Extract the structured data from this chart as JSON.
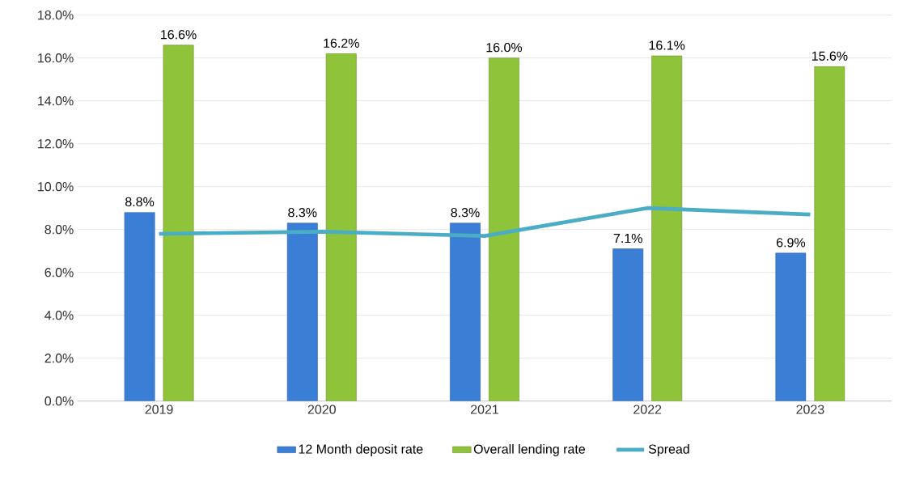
{
  "chart_data": {
    "type": "bar",
    "categories": [
      "2019",
      "2020",
      "2021",
      "2022",
      "2023"
    ],
    "series": [
      {
        "name": "12 Month deposit rate",
        "color": "#3a7fd5",
        "values": [
          8.8,
          8.3,
          8.3,
          7.1,
          6.9
        ],
        "value_labels": [
          "8.8%",
          "8.3%",
          "8.3%",
          "7.1%",
          "6.9%"
        ]
      },
      {
        "name": "Overall lending rate",
        "color": "#8fc33a",
        "values": [
          16.6,
          16.2,
          16.0,
          16.1,
          15.6
        ],
        "value_labels": [
          "16.6%",
          "16.2%",
          "16.0%",
          "16.1%",
          "15.6%"
        ]
      },
      {
        "name": "Spread",
        "type": "line",
        "color": "#4bacc6",
        "values": [
          7.8,
          7.9,
          7.7,
          9.0,
          8.7
        ]
      }
    ],
    "ylim": [
      0,
      18
    ],
    "yticks": [
      {
        "value": 0,
        "label": "0.0%"
      },
      {
        "value": 2,
        "label": "2.0%"
      },
      {
        "value": 4,
        "label": "4.0%"
      },
      {
        "value": 6,
        "label": "6.0%"
      },
      {
        "value": 8,
        "label": "8.0%"
      },
      {
        "value": 10,
        "label": "10.0%"
      },
      {
        "value": 12,
        "label": "12.0%"
      },
      {
        "value": 14,
        "label": "14.0%"
      },
      {
        "value": 16,
        "label": "16.0%"
      },
      {
        "value": 18,
        "label": "18.0%"
      }
    ],
    "grid": "y",
    "legend": "bottom",
    "marker": "none",
    "line_style": "solid"
  }
}
